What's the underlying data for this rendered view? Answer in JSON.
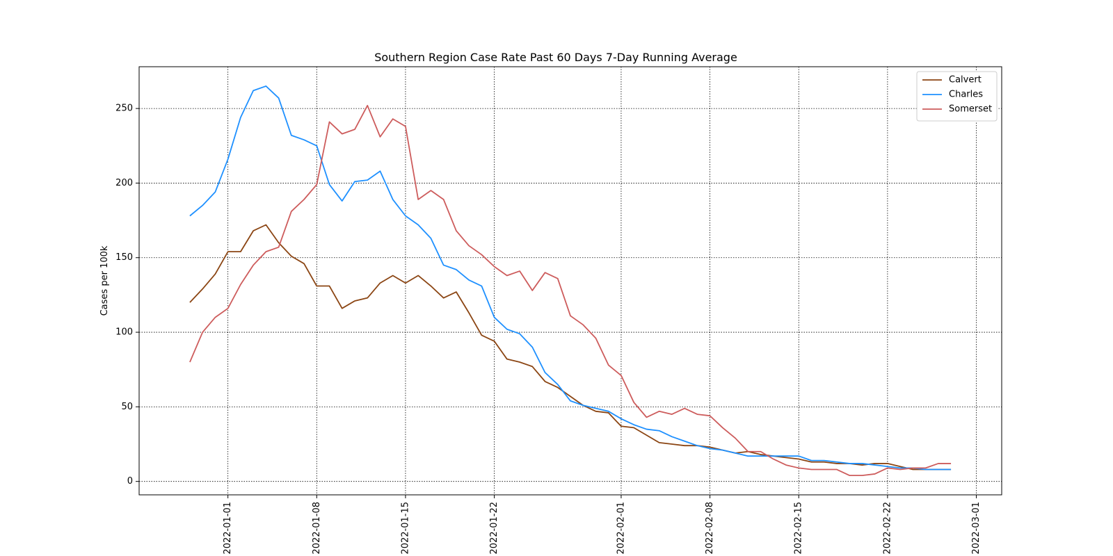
{
  "chart_data": {
    "type": "line",
    "title": "Southern Region Case Rate  Past 60 Days 7-Day Running Average",
    "xlabel": "",
    "ylabel": "Cases per 100k",
    "x": [
      "2021-12-29",
      "2021-12-30",
      "2021-12-31",
      "2022-01-01",
      "2022-01-02",
      "2022-01-03",
      "2022-01-04",
      "2022-01-05",
      "2022-01-06",
      "2022-01-07",
      "2022-01-08",
      "2022-01-09",
      "2022-01-10",
      "2022-01-11",
      "2022-01-12",
      "2022-01-13",
      "2022-01-14",
      "2022-01-15",
      "2022-01-16",
      "2022-01-17",
      "2022-01-18",
      "2022-01-19",
      "2022-01-20",
      "2022-01-21",
      "2022-01-22",
      "2022-01-23",
      "2022-01-24",
      "2022-01-25",
      "2022-01-26",
      "2022-01-27",
      "2022-01-28",
      "2022-01-29",
      "2022-01-30",
      "2022-01-31",
      "2022-02-01",
      "2022-02-02",
      "2022-02-03",
      "2022-02-04",
      "2022-02-05",
      "2022-02-06",
      "2022-02-07",
      "2022-02-08",
      "2022-02-09",
      "2022-02-10",
      "2022-02-11",
      "2022-02-12",
      "2022-02-13",
      "2022-02-14",
      "2022-02-15",
      "2022-02-16",
      "2022-02-17",
      "2022-02-18",
      "2022-02-19",
      "2022-02-20",
      "2022-02-21",
      "2022-02-22",
      "2022-02-23",
      "2022-02-24",
      "2022-02-25",
      "2022-02-26",
      "2022-02-27"
    ],
    "series": [
      {
        "name": "Calvert",
        "color": "#8b4513",
        "values": [
          120,
          129,
          139,
          154,
          154,
          168,
          172,
          160,
          151,
          146,
          131,
          131,
          116,
          121,
          123,
          133,
          138,
          133,
          138,
          131,
          123,
          127,
          113,
          98,
          94,
          82,
          80,
          77,
          67,
          63,
          57,
          51,
          47,
          46,
          37,
          36,
          31,
          26,
          25,
          24,
          24,
          23,
          21,
          19,
          20,
          18,
          17,
          16,
          15,
          13,
          13,
          12,
          12,
          11,
          12,
          12,
          10,
          8,
          8,
          8,
          8
        ]
      },
      {
        "name": "Charles",
        "color": "#1e90ff",
        "values": [
          178,
          185,
          194,
          216,
          244,
          262,
          265,
          257,
          232,
          229,
          225,
          199,
          188,
          201,
          202,
          208,
          189,
          178,
          172,
          163,
          145,
          142,
          135,
          131,
          110,
          102,
          99,
          90,
          73,
          65,
          54,
          51,
          49,
          47,
          42,
          38,
          35,
          34,
          30,
          27,
          24,
          22,
          21,
          19,
          17,
          17,
          17,
          17,
          17,
          14,
          14,
          13,
          12,
          12,
          11,
          10,
          9,
          9,
          8,
          8,
          8
        ]
      },
      {
        "name": "Somerset",
        "color": "#cd5c5c",
        "values": [
          80,
          100,
          110,
          116,
          132,
          145,
          154,
          157,
          181,
          189,
          199,
          241,
          233,
          236,
          252,
          231,
          243,
          238,
          189,
          195,
          189,
          168,
          158,
          152,
          144,
          138,
          141,
          128,
          140,
          136,
          111,
          105,
          96,
          78,
          71,
          53,
          43,
          47,
          45,
          49,
          45,
          44,
          36,
          29,
          20,
          20,
          15,
          11,
          9,
          8,
          8,
          8,
          4,
          4,
          5,
          9,
          8,
          9,
          9,
          12,
          12
        ]
      }
    ],
    "xticks": [
      "2022-01-01",
      "2022-01-08",
      "2022-01-15",
      "2022-01-22",
      "2022-02-01",
      "2022-02-08",
      "2022-02-15",
      "2022-02-22",
      "2022-03-01"
    ],
    "yticks": [
      0,
      50,
      100,
      150,
      200,
      250
    ],
    "xlim": [
      "2021-12-25",
      "2022-03-03"
    ],
    "ylim": [
      -9,
      278
    ],
    "grid": true,
    "legend_position": "top-right"
  }
}
